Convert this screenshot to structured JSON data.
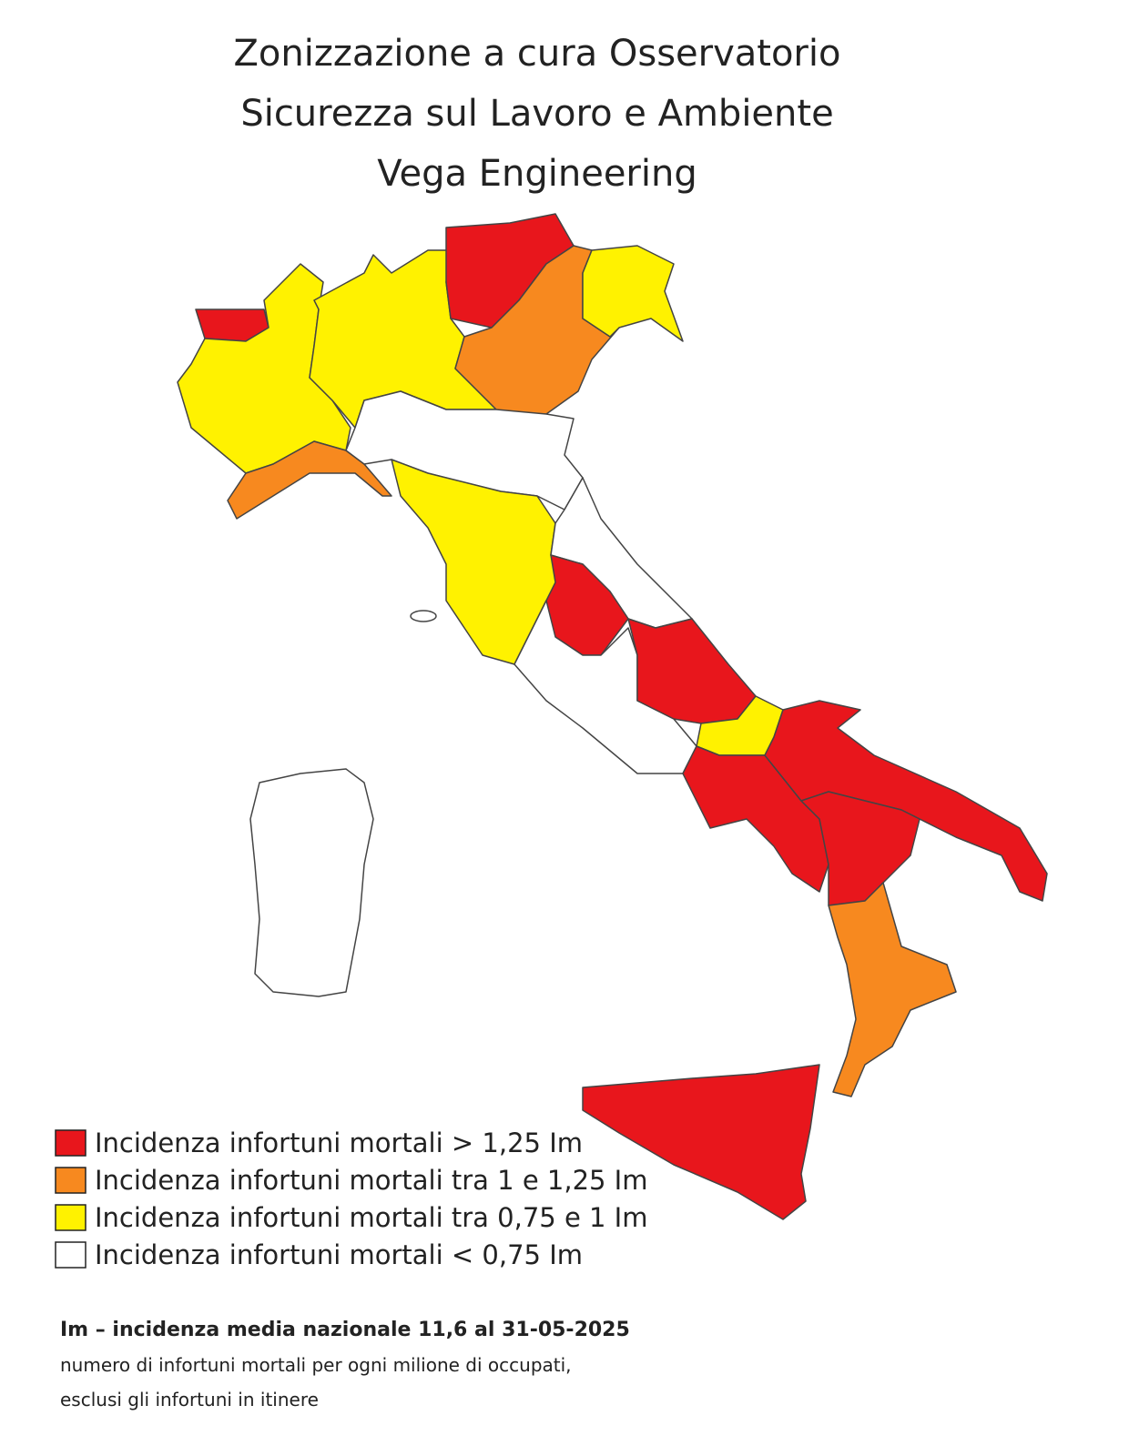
{
  "header": {
    "title_lines": [
      "Zonizzazione a cura Osservatorio",
      "Sicurezza sul Lavoro e Ambiente",
      "Vega Engineering"
    ]
  },
  "legend": {
    "items": [
      {
        "label": "Incidenza infortuni mortali > 1,25 Im",
        "color": "#e8161c"
      },
      {
        "label": "Incidenza infortuni mortali tra 1 e 1,25 Im",
        "color": "#f7891f"
      },
      {
        "label": "Incidenza infortuni mortali tra 0,75 e 1 Im",
        "color": "#fff200"
      },
      {
        "label": "Incidenza infortuni mortali < 0,75 Im",
        "color": "#ffffff"
      }
    ]
  },
  "notes": {
    "lines": [
      "Im – incidenza media nazionale 11,6 al 31-05-2025",
      "numero di infortuni mortali per ogni milione di occupati,",
      "esclusi gli infortuni in itinere"
    ]
  }
}
